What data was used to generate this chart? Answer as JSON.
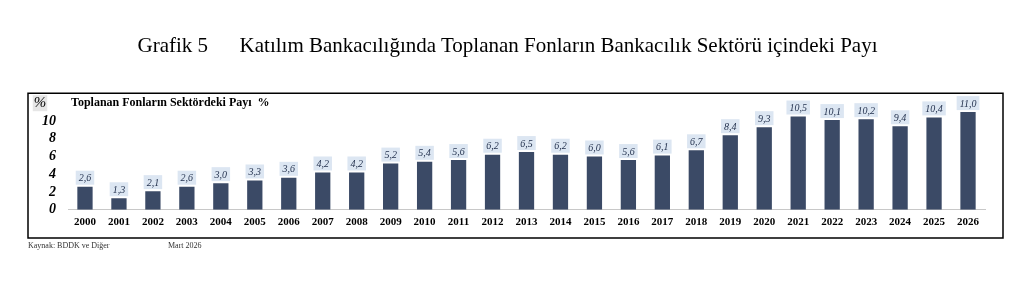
{
  "chart_data": {
    "type": "bar",
    "title": "Grafik 5      Katılım Bankacılığında Toplanan Fonların Bankacılık Sektörü içindeki Payı",
    "subtitle": "Toplanan Fonların Sektördeki Payı  %",
    "ylabel": "%",
    "categories": [
      "2000",
      "2001",
      "2002",
      "2003",
      "2004",
      "2005",
      "2006",
      "2007",
      "2008",
      "2009",
      "2010",
      "2011",
      "2012",
      "2013",
      "2014",
      "2015",
      "2016",
      "2017",
      "2018",
      "2019",
      "2020",
      "2021",
      "2022",
      "2023",
      "2024",
      "2025",
      "2026"
    ],
    "values": [
      2.6,
      1.3,
      2.1,
      2.6,
      3.0,
      3.3,
      3.6,
      4.2,
      4.2,
      5.2,
      5.4,
      5.6,
      6.2,
      6.5,
      6.2,
      6.0,
      5.6,
      6.1,
      6.7,
      8.4,
      9.3,
      10.5,
      10.1,
      10.2,
      9.4,
      10.4,
      11.0
    ],
    "value_labels": [
      "2,6",
      "1,3",
      "2,1",
      "2,6",
      "3,0",
      "3,3",
      "3,6",
      "4,2",
      "4,2",
      "5,2",
      "5,4",
      "5,6",
      "6,2",
      "6,5",
      "6,2",
      "6,0",
      "5,6",
      "6,1",
      "6,7",
      "8,4",
      "9,3",
      "10,5",
      "10,1",
      "10,2",
      "9,4",
      "10,4",
      "11,0"
    ],
    "color": "#3b4a66",
    "ylim": [
      0,
      12
    ],
    "yticks": [
      0,
      2,
      4,
      6,
      8,
      10
    ],
    "grid": false,
    "legend": false,
    "annotations": [
      "Kaynak: BDDK ve Diğer",
      "Mart 2026"
    ]
  }
}
